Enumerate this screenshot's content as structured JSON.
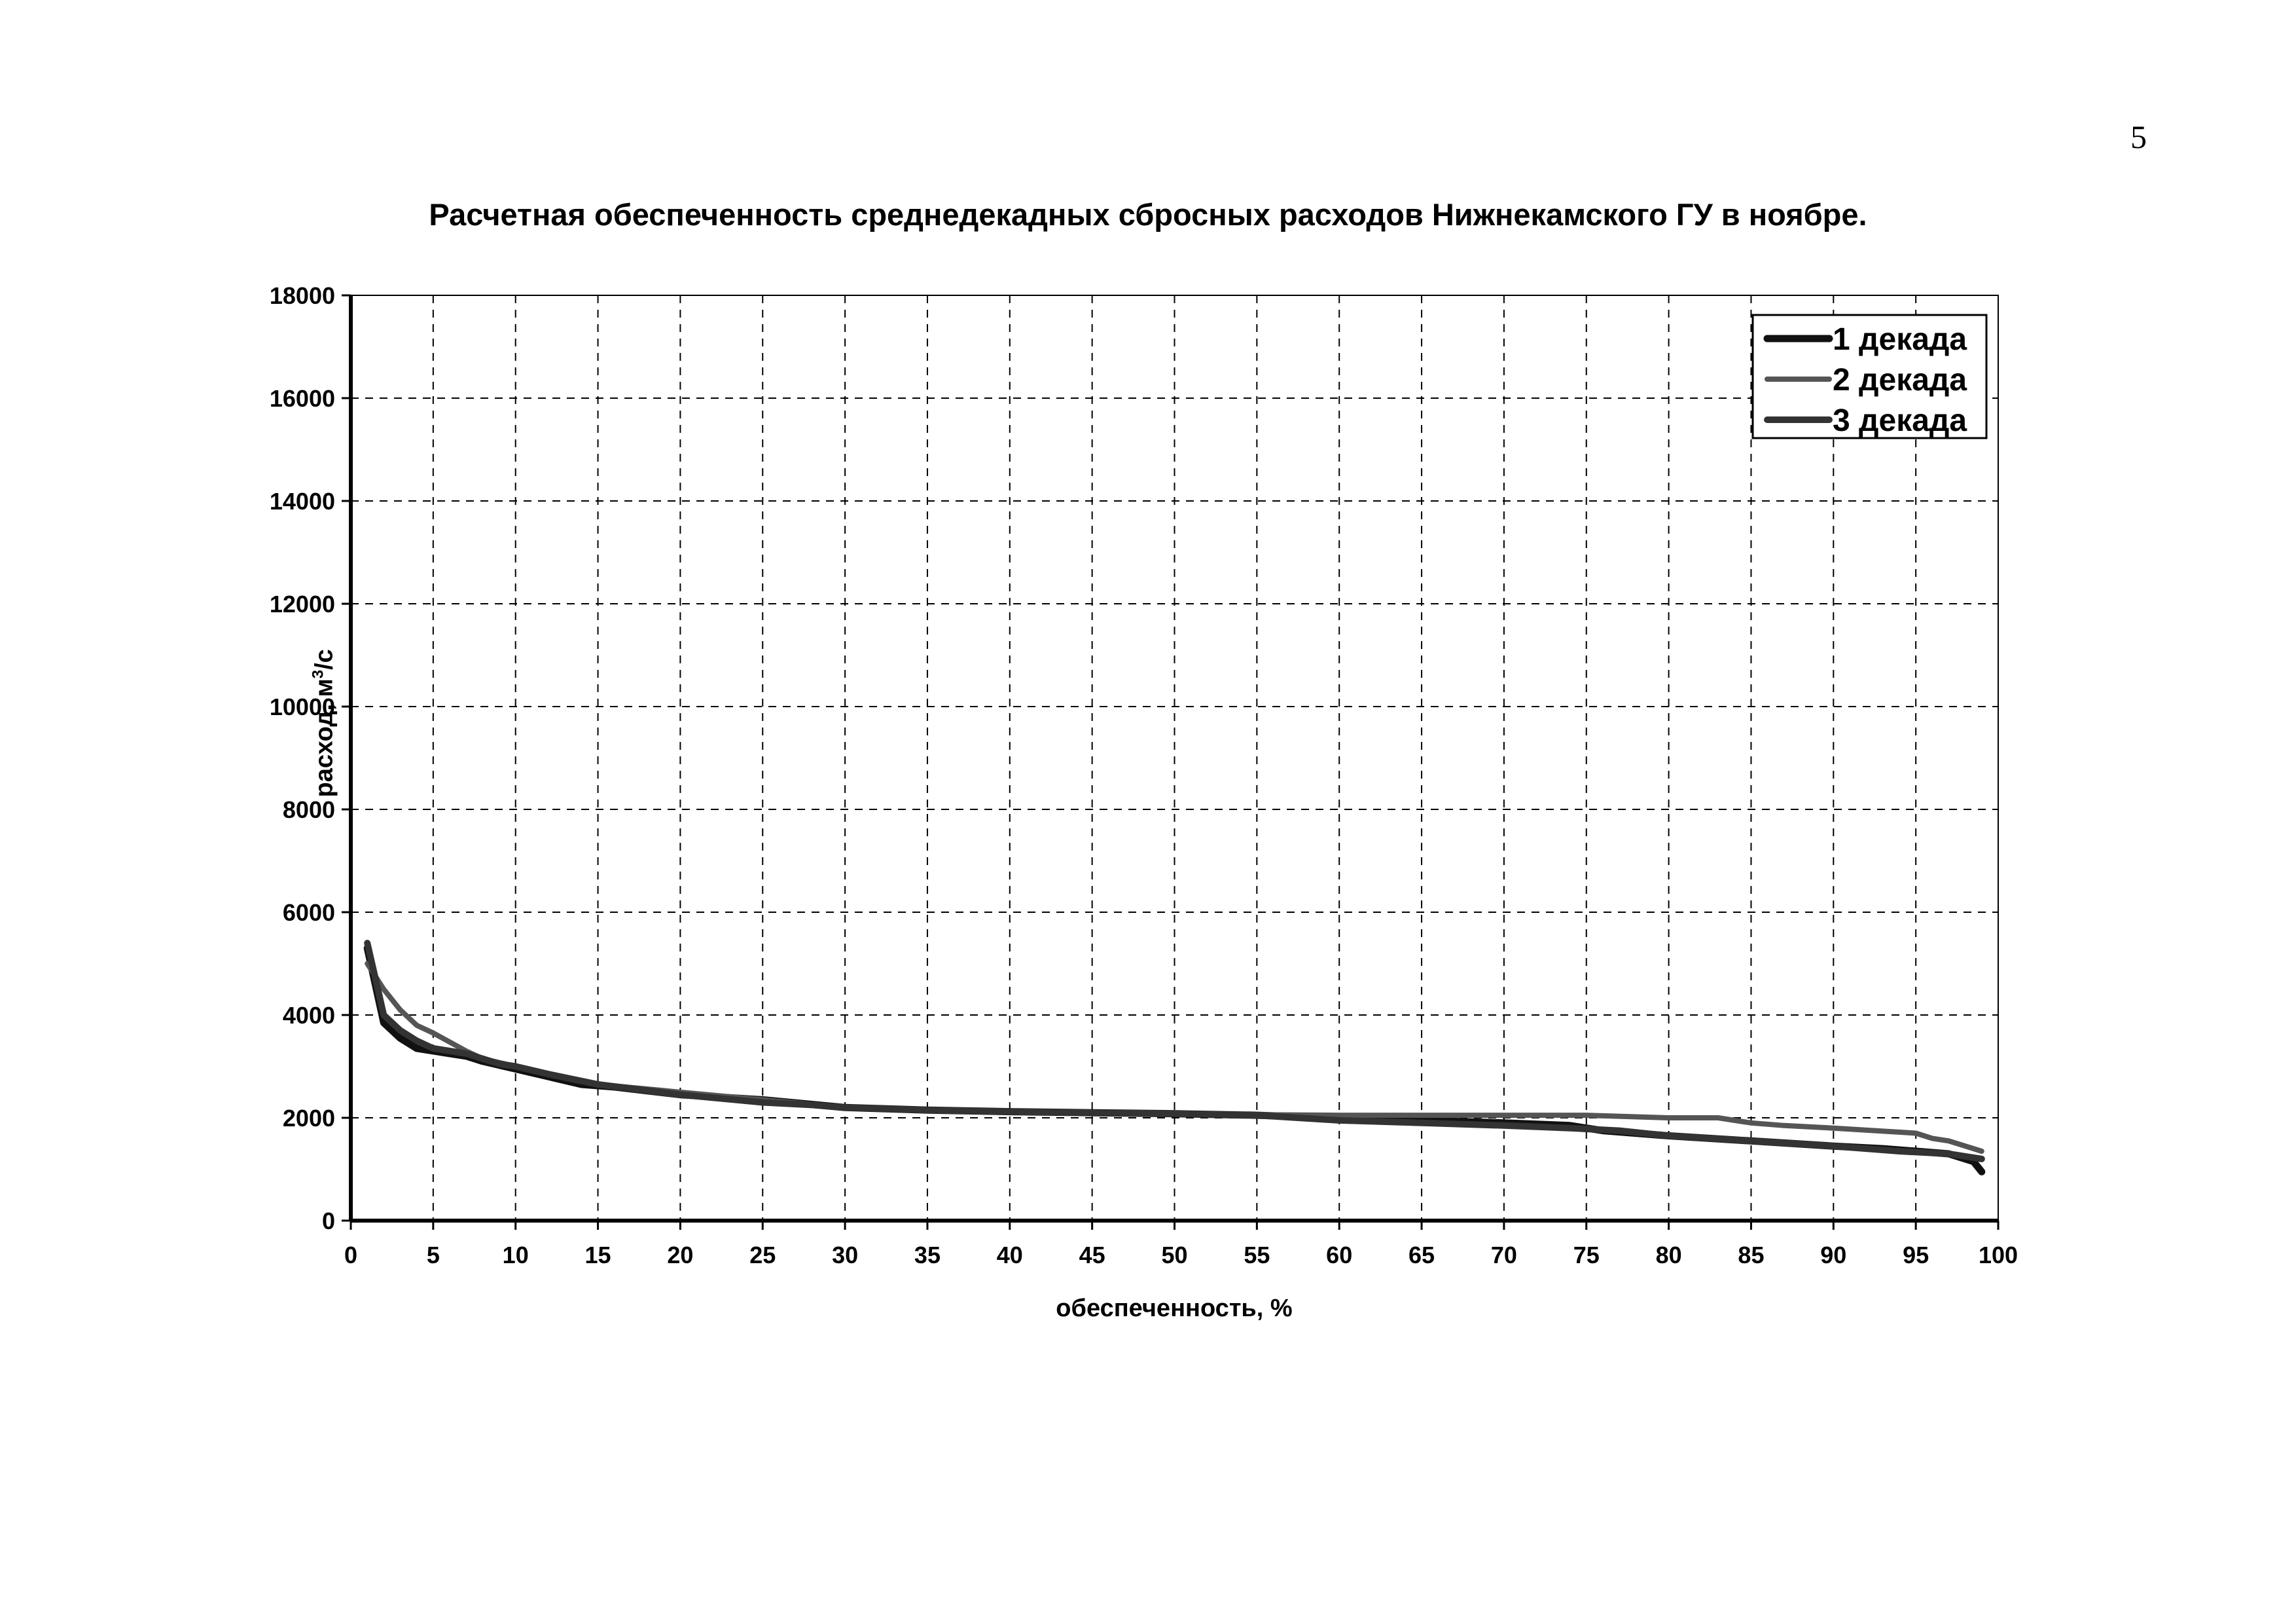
{
  "page": {
    "number": "5"
  },
  "chart_data": {
    "type": "line",
    "title": "Расчетная обеспеченность среднедекадных сбросных расходов Нижнекамского ГУ в ноябре.",
    "xlabel": "обеспеченность, %",
    "ylabel_text": "расход, м",
    "ylabel_sup": "3",
    "ylabel_tail": "/с",
    "xlim": [
      0,
      100
    ],
    "ylim": [
      0,
      18000
    ],
    "x_ticks": [
      "0",
      "5",
      "10",
      "15",
      "20",
      "25",
      "30",
      "35",
      "40",
      "45",
      "50",
      "55",
      "60",
      "65",
      "70",
      "75",
      "80",
      "85",
      "90",
      "95",
      "100"
    ],
    "y_ticks": [
      "0",
      "2000",
      "4000",
      "6000",
      "8000",
      "10000",
      "12000",
      "14000",
      "16000",
      "18000"
    ],
    "grid": true,
    "legend_position": "top-right",
    "series": [
      {
        "name": "1 декада",
        "color": "#111111",
        "x": [
          1,
          2,
          3,
          4,
          5,
          6,
          7,
          8,
          10,
          12,
          14,
          16,
          20,
          25,
          30,
          35,
          40,
          45,
          50,
          55,
          60,
          65,
          70,
          74,
          76,
          80,
          85,
          90,
          93,
          95,
          97,
          98.5,
          99
        ],
        "y": [
          5300,
          3850,
          3550,
          3350,
          3300,
          3250,
          3200,
          3100,
          2950,
          2800,
          2650,
          2600,
          2450,
          2350,
          2200,
          2150,
          2120,
          2100,
          2080,
          2050,
          2000,
          1950,
          1900,
          1850,
          1750,
          1650,
          1550,
          1450,
          1400,
          1350,
          1300,
          1150,
          950
        ]
      },
      {
        "name": "2 декада",
        "color": "#555555",
        "x": [
          1,
          2,
          3,
          4,
          5,
          7,
          8,
          10,
          12,
          15,
          20,
          25,
          30,
          35,
          40,
          45,
          50,
          55,
          60,
          65,
          70,
          75,
          80,
          83,
          85,
          87,
          90,
          95,
          96,
          97,
          98,
          99
        ],
        "y": [
          5000,
          4500,
          4100,
          3800,
          3650,
          3300,
          3150,
          3000,
          2850,
          2650,
          2500,
          2350,
          2200,
          2150,
          2120,
          2100,
          2080,
          2060,
          2050,
          2050,
          2050,
          2050,
          2000,
          2000,
          1900,
          1850,
          1800,
          1700,
          1600,
          1550,
          1450,
          1350
        ]
      },
      {
        "name": "3 декада",
        "color": "#333333",
        "x": [
          1,
          1.5,
          2,
          3,
          4,
          5,
          7,
          9,
          10,
          12,
          15,
          20,
          25,
          28,
          30,
          35,
          40,
          45,
          50,
          55,
          60,
          65,
          70,
          74,
          77,
          80,
          85,
          90,
          94,
          97,
          98,
          99
        ],
        "y": [
          5400,
          4700,
          4000,
          3700,
          3500,
          3350,
          3250,
          3050,
          3000,
          2850,
          2650,
          2450,
          2300,
          2250,
          2200,
          2150,
          2120,
          2100,
          2080,
          2050,
          1950,
          1900,
          1850,
          1800,
          1750,
          1650,
          1550,
          1450,
          1350,
          1300,
          1250,
          1200
        ]
      }
    ]
  }
}
